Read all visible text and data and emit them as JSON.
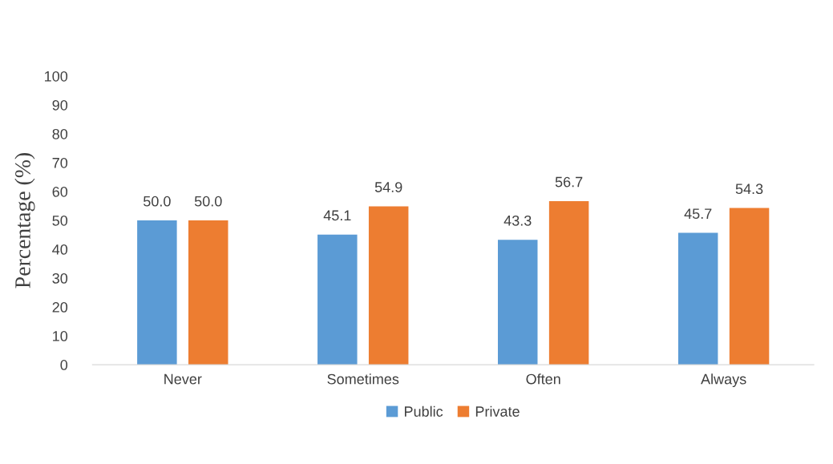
{
  "chart_data": {
    "type": "bar",
    "ylabel": "Percentage (%)",
    "categories": [
      "Never",
      "Sometimes",
      "Often",
      "Always"
    ],
    "series": [
      {
        "name": "Public",
        "color": "#5b9bd5",
        "values": [
          50.0,
          45.1,
          43.3,
          45.7
        ],
        "value_labels": [
          "50.0",
          "45.1",
          "43.3",
          "45.7"
        ]
      },
      {
        "name": "Private",
        "color": "#ed7d31",
        "values": [
          50.0,
          54.9,
          56.7,
          54.3
        ],
        "value_labels": [
          "50.0",
          "54.9",
          "56.7",
          "54.3"
        ]
      }
    ],
    "ylim": [
      0,
      100
    ],
    "yticks": [
      0,
      10,
      20,
      30,
      40,
      50,
      60,
      70,
      80,
      90,
      100
    ],
    "grid": false,
    "legend": "bottom"
  }
}
